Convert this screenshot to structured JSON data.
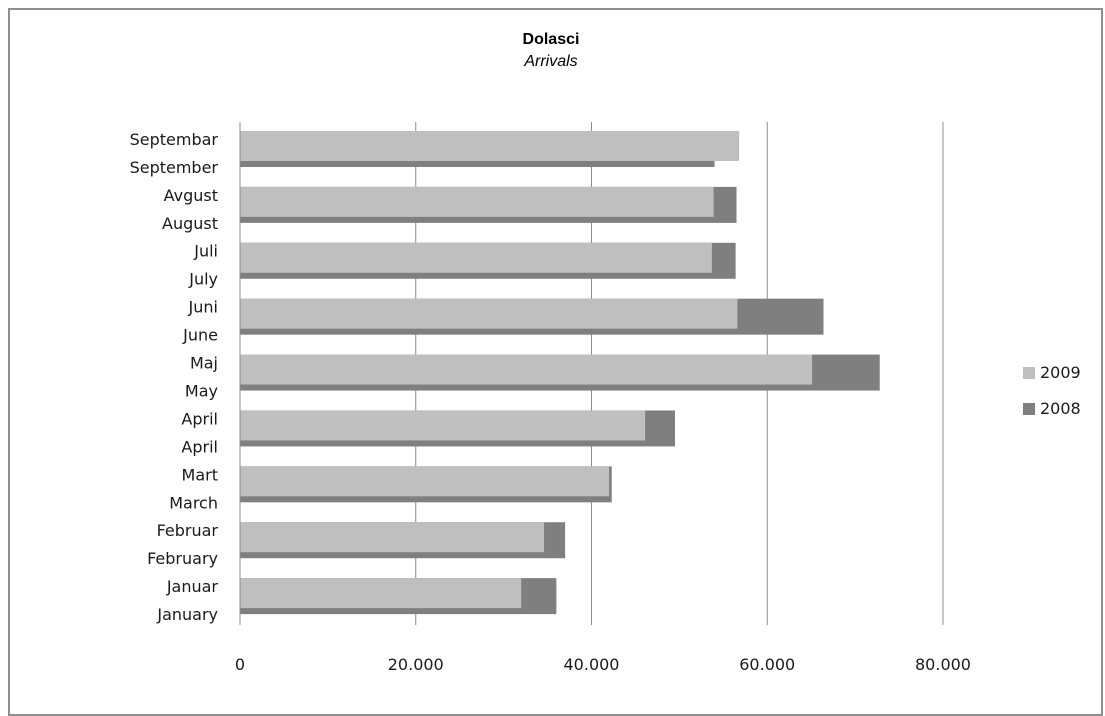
{
  "chart_data": {
    "type": "bar",
    "orientation": "horizontal",
    "title": "Dolasci",
    "subtitle": "Arrivals",
    "categories": [
      [
        "Septembar",
        "September"
      ],
      [
        "Avgust",
        "August"
      ],
      [
        "Juli",
        "July"
      ],
      [
        "Juni",
        "June"
      ],
      [
        "Maj",
        "May"
      ],
      [
        "April",
        "April"
      ],
      [
        "Mart",
        "March"
      ],
      [
        "Februar",
        "February"
      ],
      [
        "Januar",
        "January"
      ]
    ],
    "series": [
      {
        "name": "2009",
        "color": "#bfbfbf",
        "values": [
          56800,
          53900,
          53700,
          56600,
          65100,
          46100,
          42000,
          34600,
          32000
        ]
      },
      {
        "name": "2008",
        "color": "#7f7f7f",
        "values": [
          54000,
          56500,
          56400,
          66400,
          72800,
          49500,
          42300,
          37000,
          36000
        ]
      }
    ],
    "xaxis": {
      "min": 0,
      "max": 80000,
      "ticks": [
        0,
        20000,
        40000,
        60000,
        80000
      ],
      "tick_labels": [
        "0",
        "20.000",
        "40.000",
        "60.000",
        "80.000"
      ]
    },
    "grid": true,
    "legend_position": "right"
  }
}
